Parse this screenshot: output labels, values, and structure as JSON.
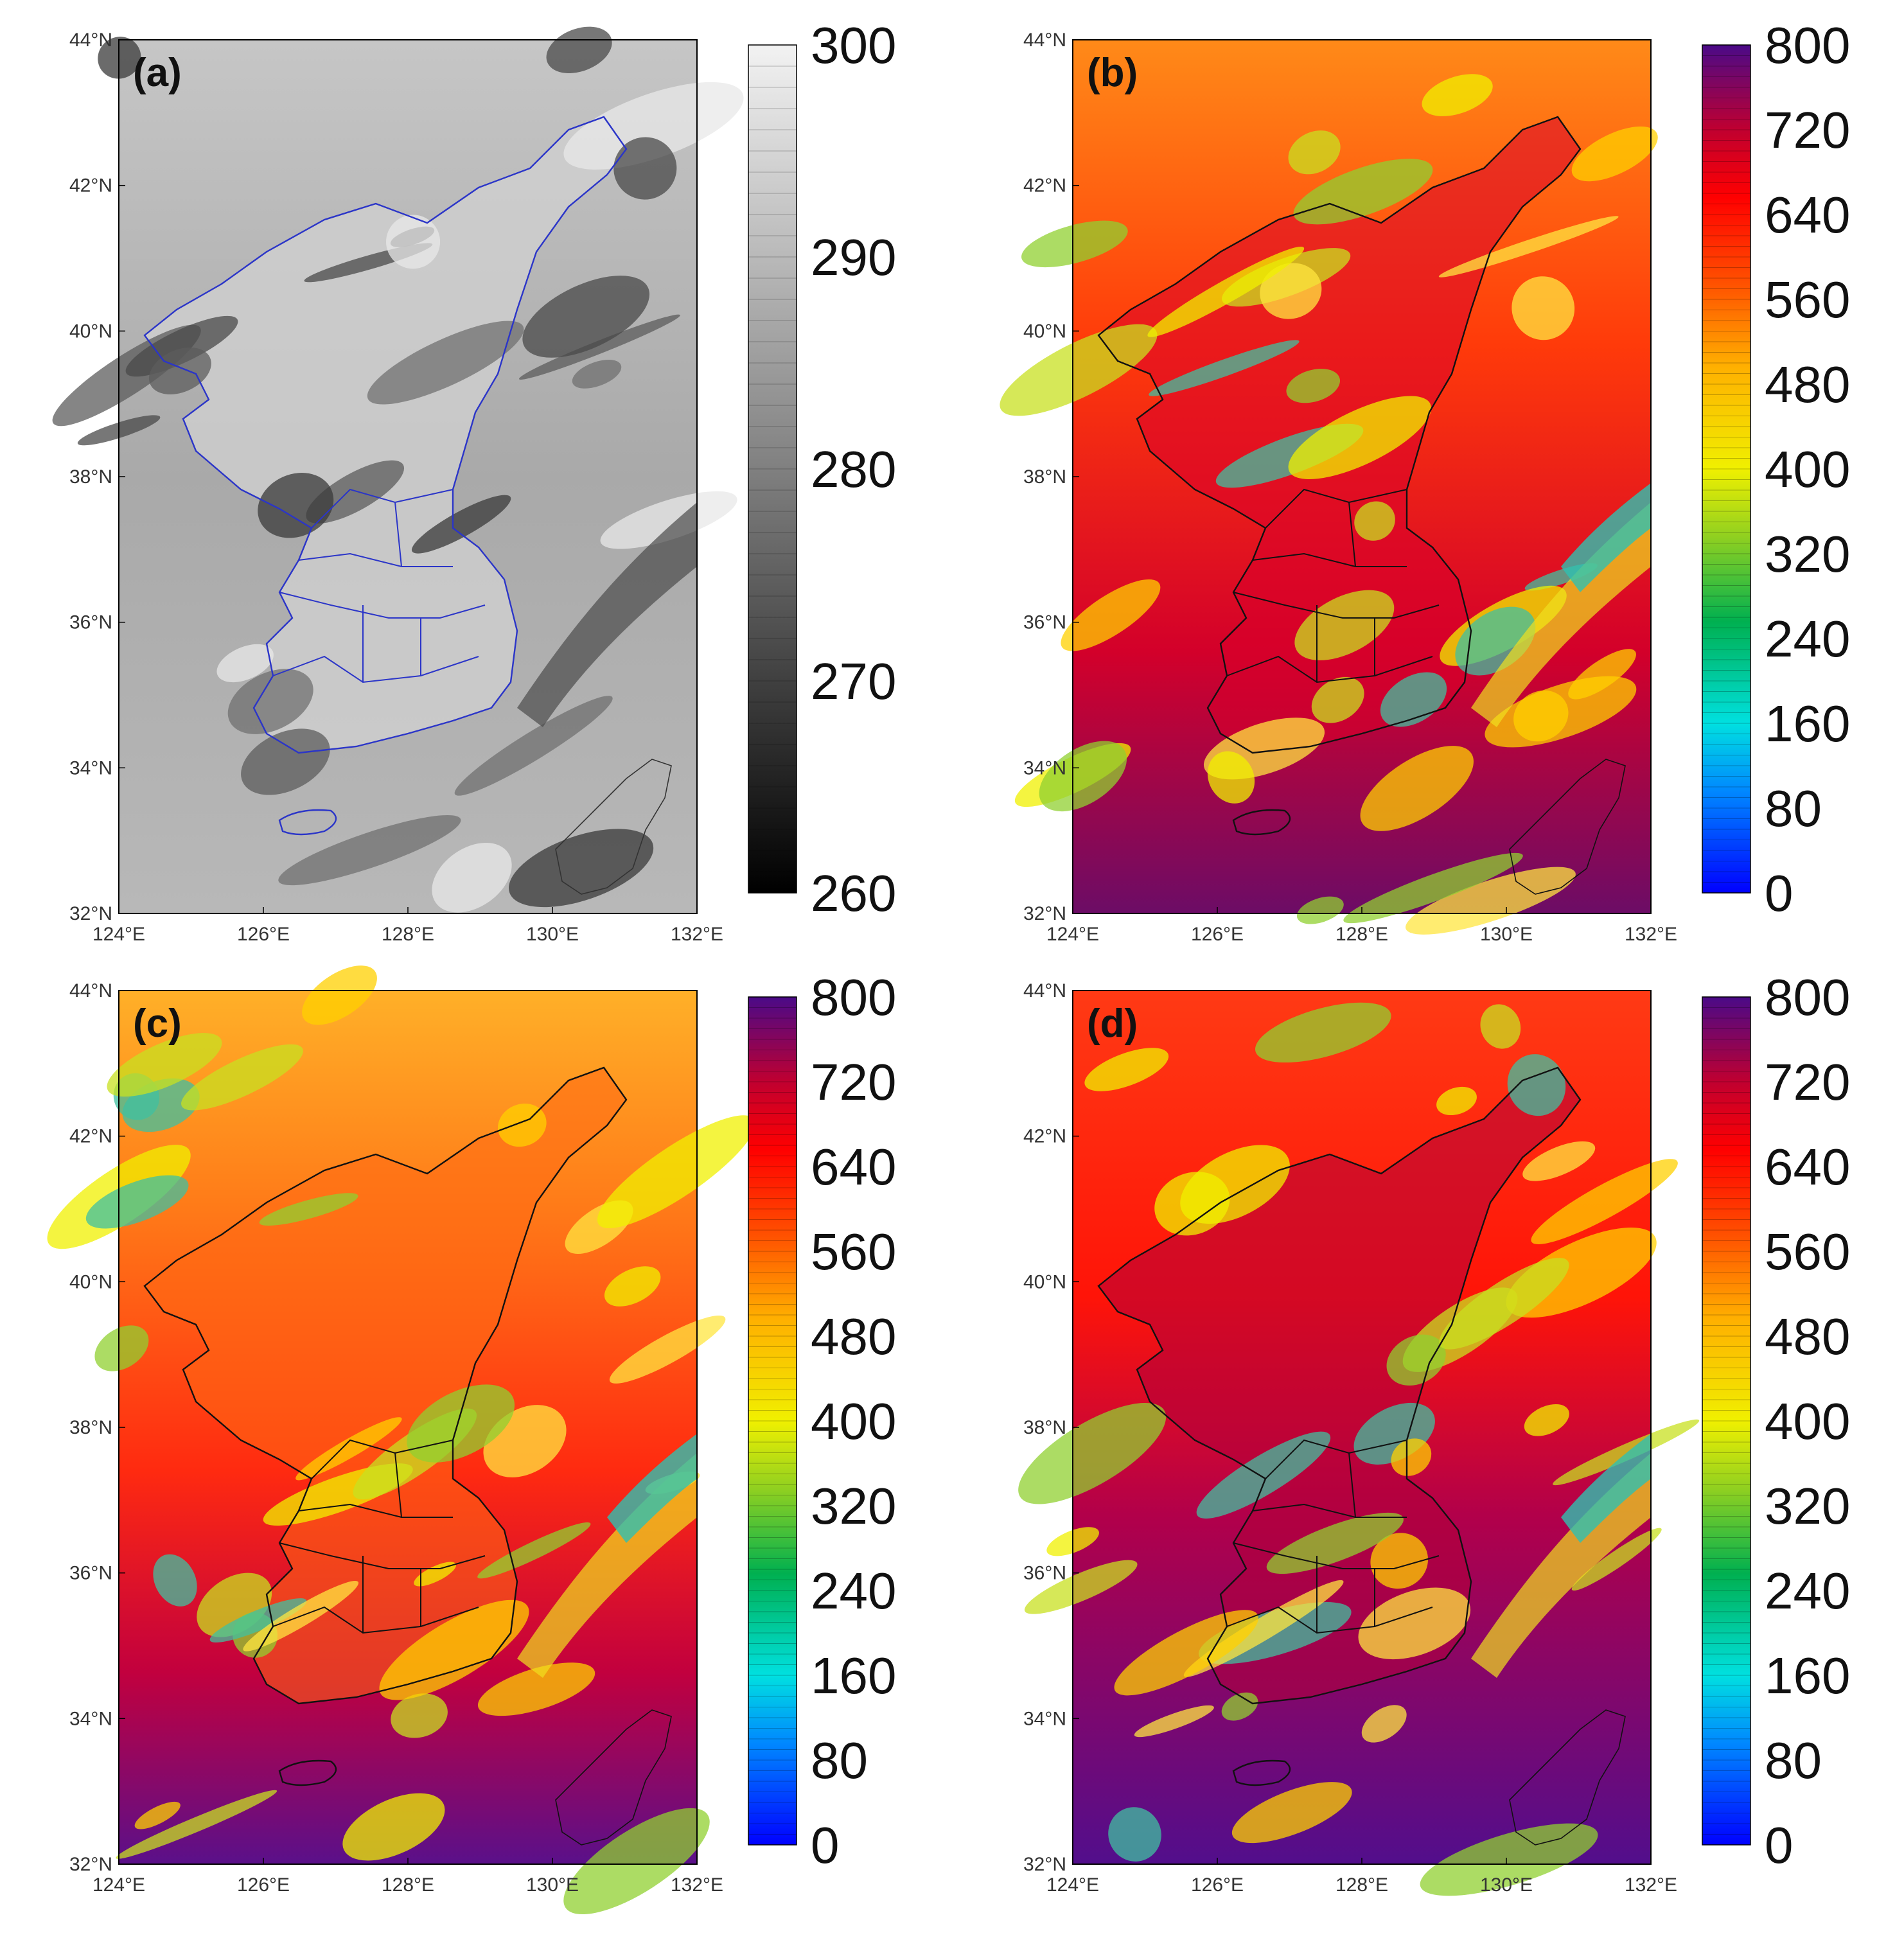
{
  "lat_ticks": [
    "44°N",
    "42°N",
    "40°N",
    "38°N",
    "36°N",
    "34°N",
    "32°N"
  ],
  "lon_ticks": [
    "124°E",
    "126°E",
    "128°E",
    "130°E",
    "132°E"
  ],
  "panels": [
    {
      "label": "(a)",
      "colormap": "grayscale",
      "colorbar_labels": [
        "300",
        "290",
        "280",
        "270",
        "260"
      ],
      "boundary_color": "#2b35c8"
    },
    {
      "label": "(b)",
      "colormap": "rainbow",
      "colorbar_labels": [
        "800",
        "720",
        "640",
        "560",
        "480",
        "400",
        "320",
        "240",
        "160",
        "80",
        "0"
      ],
      "boundary_color": "#111111"
    },
    {
      "label": "(c)",
      "colormap": "rainbow",
      "colorbar_labels": [
        "800",
        "720",
        "640",
        "560",
        "480",
        "400",
        "320",
        "240",
        "160",
        "80",
        "0"
      ],
      "boundary_color": "#111111"
    },
    {
      "label": "(d)",
      "colormap": "rainbow",
      "colorbar_labels": [
        "800",
        "720",
        "640",
        "560",
        "480",
        "400",
        "320",
        "240",
        "160",
        "80",
        "0"
      ],
      "boundary_color": "#111111"
    }
  ]
}
